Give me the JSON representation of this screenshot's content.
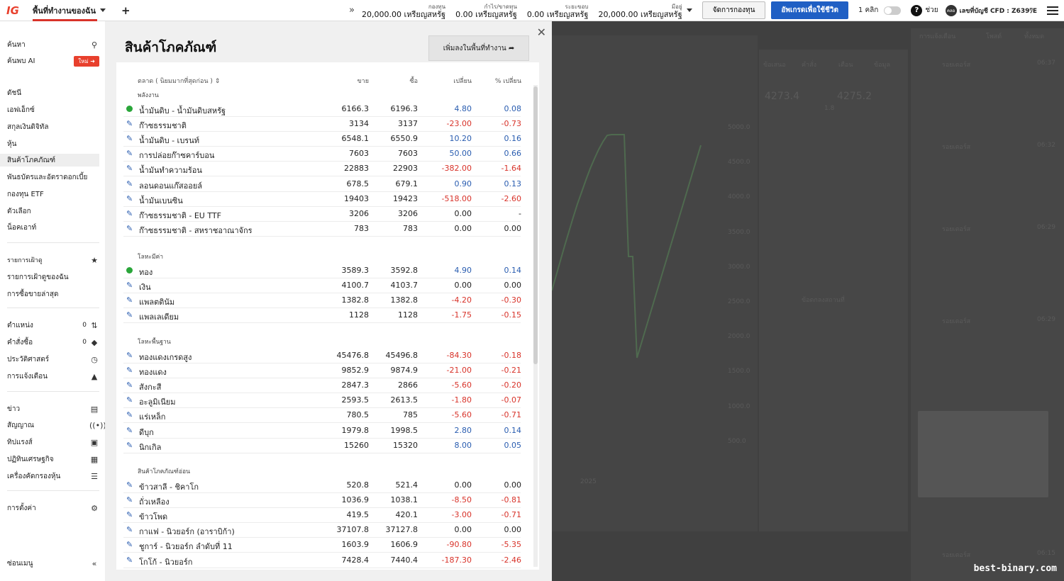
{
  "topbar": {
    "logo": "IG",
    "workspace": "พื้นที่ทำงานของฉัน",
    "add": "+",
    "chevrons": "»",
    "metrics": [
      {
        "label": "กองทุน",
        "value": "20,000.00 เหรียญสหรัฐ"
      },
      {
        "label": "กำไร/ขาดทุน",
        "value": "0.00 เหรียญสหรัฐ"
      },
      {
        "label": "ระยะขอบ",
        "value": "0.00 เหรียญสหรัฐ"
      },
      {
        "label": "มีอยู่",
        "value": "20,000.00 เหรียญสหรัฐ"
      }
    ],
    "manage_funds": "จัดการกองทุน",
    "upgrade": "อัพเกรดเพื่อใช้ชีวิต",
    "one_click": "1 คลิก",
    "help_symbol": "?",
    "help": "ช่วย",
    "account_badge": "คลอ",
    "account": "เลขที่บัญชี CFD : Z639ﾜE"
  },
  "sidebar": {
    "search": "ค้นหา",
    "ai_search": "ค้นพบ AI",
    "new_badge": "ใหม่",
    "nav": [
      "ดัชนี",
      "เอฟเอ็กซ์",
      "สกุลเงินดิจิทัล",
      "หุ้น",
      "สินค้าโภคภัณฑ์",
      "พันธบัตรและอัตราดอกเบี้ย",
      "กองทุน ETF",
      "ตัวเลือก",
      "น็อคเอาท์"
    ],
    "watchlist_head": "รายการเฝ้าดู",
    "watchlist_items": [
      "รายการเฝ้าดูของฉัน",
      "การซื้อขายล่าสุด"
    ],
    "positions": "ตำแหน่ง",
    "positions_count": "0",
    "orders": "คำสั่งซื้อ",
    "orders_count": "0",
    "history": "ประวัติศาสตร์",
    "alerts": "การแจ้งเตือน",
    "news": "ข่าว",
    "signals": "สัญญาณ",
    "tipranks": "ทิปแรงส์",
    "calendar": "ปฏิทินเศรษฐกิจ",
    "screener": "เครื่องคัดกรองหุ้น",
    "settings": "การตั้งค่า",
    "hide_menu": "ซ่อนเมนู"
  },
  "panel": {
    "title": "สินค้าโภคภัณฑ์",
    "add_workspace": "เพิ่มลงในพื้นที่ทำงาน ➦",
    "columns": {
      "market": "ตลาด ( นิยมมากที่สุดก่อน ) ⇕",
      "sell": "ขาย",
      "buy": "ซื้อ",
      "change": "เปลี่ยน",
      "pct": "% เปลี่ยน"
    },
    "groups": [
      {
        "name": "พลังงาน",
        "rows": [
          {
            "name": "น้ำมันดิบ - น้ำมันดิบสหรัฐ",
            "sell": "6166.3",
            "buy": "6196.3",
            "chg": "4.80",
            "pct": "0.08",
            "mark": "dot",
            "dir": "pos"
          },
          {
            "name": "ก๊าซธรรมชาติ",
            "sell": "3134",
            "buy": "3137",
            "chg": "-23.00",
            "pct": "-0.73",
            "mark": "pen",
            "dir": "neg"
          },
          {
            "name": "น้ำมันดิบ - เบรนท์",
            "sell": "6548.1",
            "buy": "6550.9",
            "chg": "10.20",
            "pct": "0.16",
            "mark": "pen",
            "dir": "pos"
          },
          {
            "name": "การปล่อยก๊าซคาร์บอน",
            "sell": "7603",
            "buy": "7603",
            "chg": "50.00",
            "pct": "0.66",
            "mark": "pen",
            "dir": "pos"
          },
          {
            "name": "น้ำมันทำความร้อน",
            "sell": "22883",
            "buy": "22903",
            "chg": "-382.00",
            "pct": "-1.64",
            "mark": "pen",
            "dir": "neg"
          },
          {
            "name": "ลอนดอนแก๊สออยล์",
            "sell": "678.5",
            "buy": "679.1",
            "chg": "0.90",
            "pct": "0.13",
            "mark": "pen",
            "dir": "pos"
          },
          {
            "name": "น้ำมันเบนซิน",
            "sell": "19403",
            "buy": "19423",
            "chg": "-518.00",
            "pct": "-2.60",
            "mark": "pen",
            "dir": "neg"
          },
          {
            "name": "ก๊าซธรรมชาติ - EU TTF",
            "sell": "3206",
            "buy": "3206",
            "chg": "0.00",
            "pct": "-",
            "mark": "pen",
            "dir": "zero"
          },
          {
            "name": "ก๊าซธรรมชาติ - สหราชอาณาจักร",
            "sell": "783",
            "buy": "783",
            "chg": "0.00",
            "pct": "0.00",
            "mark": "pen",
            "dir": "zero"
          }
        ]
      },
      {
        "name": "โลหะมีค่า",
        "rows": [
          {
            "name": "ทอง",
            "sell": "3589.3",
            "buy": "3592.8",
            "chg": "4.90",
            "pct": "0.14",
            "mark": "dot",
            "dir": "pos"
          },
          {
            "name": "เงิน",
            "sell": "4100.7",
            "buy": "4103.7",
            "chg": "0.00",
            "pct": "0.00",
            "mark": "pen",
            "dir": "zero"
          },
          {
            "name": "แพลตตินัม",
            "sell": "1382.8",
            "buy": "1382.8",
            "chg": "-4.20",
            "pct": "-0.30",
            "mark": "pen",
            "dir": "neg"
          },
          {
            "name": "แพลเลเดียม",
            "sell": "1128",
            "buy": "1128",
            "chg": "-1.75",
            "pct": "-0.15",
            "mark": "pen",
            "dir": "neg"
          }
        ]
      },
      {
        "name": "โลหะพื้นฐาน",
        "rows": [
          {
            "name": "ทองแดงเกรดสูง",
            "sell": "45476.8",
            "buy": "45496.8",
            "chg": "-84.30",
            "pct": "-0.18",
            "mark": "pen",
            "dir": "neg"
          },
          {
            "name": "ทองแดง",
            "sell": "9852.9",
            "buy": "9874.9",
            "chg": "-21.00",
            "pct": "-0.21",
            "mark": "pen",
            "dir": "neg"
          },
          {
            "name": "สังกะสี",
            "sell": "2847.3",
            "buy": "2866",
            "chg": "-5.60",
            "pct": "-0.20",
            "mark": "pen",
            "dir": "neg"
          },
          {
            "name": "อะลูมิเนียม",
            "sell": "2593.5",
            "buy": "2613.5",
            "chg": "-1.80",
            "pct": "-0.07",
            "mark": "pen",
            "dir": "neg"
          },
          {
            "name": "แร่เหล็ก",
            "sell": "780.5",
            "buy": "785",
            "chg": "-5.60",
            "pct": "-0.71",
            "mark": "pen",
            "dir": "neg"
          },
          {
            "name": "ดีบุก",
            "sell": "1979.8",
            "buy": "1998.5",
            "chg": "2.80",
            "pct": "0.14",
            "mark": "pen",
            "dir": "pos"
          },
          {
            "name": "นิกเกิล",
            "sell": "15260",
            "buy": "15320",
            "chg": "8.00",
            "pct": "0.05",
            "mark": "pen",
            "dir": "pos"
          }
        ]
      },
      {
        "name": "สินค้าโภคภัณฑ์อ่อน",
        "rows": [
          {
            "name": "ข้าวสาลี - ชิคาโก",
            "sell": "520.8",
            "buy": "521.4",
            "chg": "0.00",
            "pct": "0.00",
            "mark": "pen",
            "dir": "zero"
          },
          {
            "name": "ถั่วเหลือง",
            "sell": "1036.9",
            "buy": "1038.1",
            "chg": "-8.50",
            "pct": "-0.81",
            "mark": "pen",
            "dir": "neg"
          },
          {
            "name": "ข้าวโพด",
            "sell": "419.5",
            "buy": "420.1",
            "chg": "-3.00",
            "pct": "-0.71",
            "mark": "pen",
            "dir": "neg"
          },
          {
            "name": "กาแฟ - นิวยอร์ก (อาราบิก้า)",
            "sell": "37107.8",
            "buy": "37127.8",
            "chg": "0.00",
            "pct": "0.00",
            "mark": "pen",
            "dir": "zero"
          },
          {
            "name": "ชูการ์ - นิวยอร์ก ลำดับที่ 11",
            "sell": "1603.9",
            "buy": "1606.9",
            "chg": "-90.80",
            "pct": "-5.35",
            "mark": "pen",
            "dir": "neg"
          },
          {
            "name": "โกโก้ - นิวยอร์ก",
            "sell": "7428.4",
            "buy": "7440.4",
            "chg": "-187.30",
            "pct": "-2.46",
            "mark": "pen",
            "dir": "neg"
          }
        ]
      }
    ]
  },
  "background": {
    "news_tabs": [
      "การแจ้งเตือน",
      "โพสต์",
      "ทั้งหมด"
    ],
    "trade_tabs": [
      "ข้อเสนอ",
      "คำสั่ง",
      "เตือน",
      "ข้อมูล"
    ],
    "sell_price": "4273.4",
    "buy_price": "4275.2",
    "spread": "1.8",
    "price_axis": [
      "5000.0",
      "4500.0",
      "4000.0",
      "3500.0",
      "3000.0",
      "2500.0",
      "2000.0",
      "1500.0",
      "1000.0",
      "500.0"
    ],
    "year_label": "2025",
    "news_source": "รอยเตอร์ส",
    "news_times": [
      "06:37",
      "06:32",
      "06:29",
      "06:29",
      "06:15"
    ],
    "deal_button": "ข้อตกลงสถานที่"
  },
  "watermark": "best-binary.com"
}
